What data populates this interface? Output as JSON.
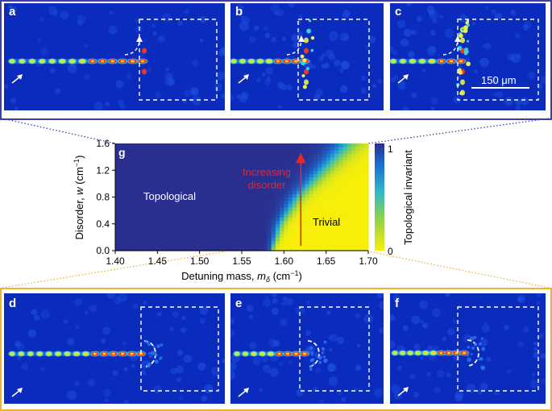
{
  "panels": {
    "a": {
      "label": "a"
    },
    "b": {
      "label": "b"
    },
    "c": {
      "label": "c",
      "scale_bar": "150 μm"
    },
    "d": {
      "label": "d"
    },
    "e": {
      "label": "e"
    },
    "f": {
      "label": "f"
    }
  },
  "chart_data": {
    "type": "heatmap",
    "panel_label": "g",
    "xlabel_prefix": "Detuning mass, ",
    "xlabel_var": "m",
    "xlabel_sub": "δ",
    "xlabel_unit": " (cm",
    "xlabel_exp": "−1",
    "xlabel_close": ")",
    "ylabel_prefix": "Disorder, ",
    "ylabel_var": "w",
    "ylabel_unit": " (cm",
    "ylabel_exp": "−1",
    "ylabel_close": ")",
    "xlim": [
      1.4,
      1.7
    ],
    "ylim": [
      0.0,
      1.6
    ],
    "xticks": [
      "1.40",
      "1.45",
      "1.50",
      "1.55",
      "1.60",
      "1.65",
      "1.70"
    ],
    "yticks": [
      "0.0",
      "0.4",
      "0.8",
      "1.2",
      "1.6"
    ],
    "colorbar": {
      "label": "Topological invariant",
      "min": "0",
      "max": "1",
      "colors": [
        "#f7ef0a",
        "#8fd24a",
        "#2fb8c7",
        "#1b6fd0",
        "#2a2f8f"
      ]
    },
    "regions": {
      "topological": "Topological",
      "trivial": "Trivial"
    },
    "arrow_annotation_line1": "Increasing",
    "arrow_annotation_line2": "disorder",
    "arrow_x": 1.62,
    "boundary": {
      "w": [
        0.0,
        0.2,
        0.4,
        0.6,
        0.8,
        1.0,
        1.2,
        1.4,
        1.6
      ],
      "m_delta": [
        1.585,
        1.59,
        1.595,
        1.605,
        1.615,
        1.63,
        1.645,
        1.66,
        1.675
      ]
    },
    "colors": {
      "topological": "#2b3a8e",
      "trivial": "#f7ef0a",
      "arrow": "#e8262a"
    }
  }
}
